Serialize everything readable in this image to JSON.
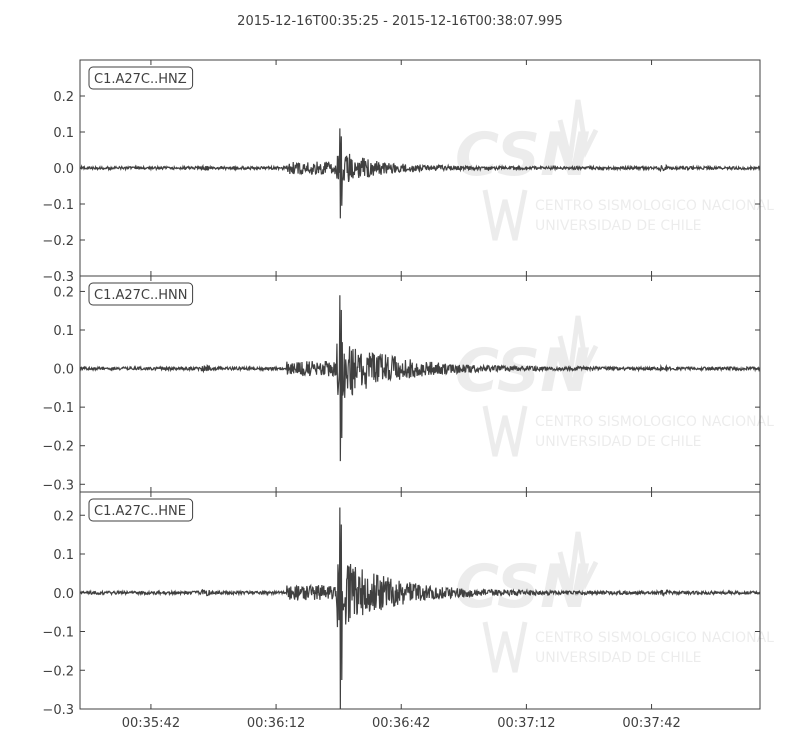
{
  "chart_data": {
    "type": "line",
    "title": "2015-12-16T00:35:25  -  2015-12-16T00:38:07.995",
    "x_tick_labels": [
      "00:35:42",
      "00:36:12",
      "00:36:42",
      "00:37:12",
      "00:37:42"
    ],
    "x_ticks_seconds": [
      17,
      47,
      77,
      107,
      137
    ],
    "x_range_seconds": [
      0,
      162.995
    ],
    "grid": false,
    "watermark_text": [
      "CSN",
      "CENTRO SISMOLOGICO NACIONAL",
      "UNIVERSIDAD DE CHILE"
    ],
    "line_color": "#404040",
    "panels": [
      {
        "label": "C1.A27C..HNZ",
        "ylim": [
          -0.3,
          0.3
        ],
        "y_ticks": [
          -0.3,
          -0.2,
          -0.1,
          0.0,
          0.1,
          0.2
        ],
        "y_tick_labels": [
          "−0.3",
          "−0.2",
          "−0.1",
          "0.0",
          "0.1",
          "0.2"
        ],
        "noise": 0.004,
        "p_arrival_s": 49.5,
        "p_amp": 0.018,
        "s_arrival_s": 61.5,
        "s_peak_max": 0.11,
        "s_peak_min": -0.14,
        "s_amp": 0.05,
        "coda_decay_s": 9
      },
      {
        "label": "C1.A27C..HNN",
        "ylim": [
          -0.32,
          0.24
        ],
        "y_ticks": [
          -0.3,
          -0.2,
          -0.1,
          0.0,
          0.1,
          0.2
        ],
        "y_tick_labels": [
          "−0.3",
          "−0.2",
          "−0.1",
          "0.0",
          "0.1",
          "0.2"
        ],
        "noise": 0.004,
        "p_arrival_s": 49.5,
        "p_amp": 0.02,
        "s_arrival_s": 61.5,
        "s_peak_max": 0.19,
        "s_peak_min": -0.24,
        "s_amp": 0.09,
        "coda_decay_s": 12
      },
      {
        "label": "C1.A27C..HNE",
        "ylim": [
          -0.3,
          0.26
        ],
        "y_ticks": [
          -0.3,
          -0.2,
          -0.1,
          0.0,
          0.1,
          0.2
        ],
        "y_tick_labels": [
          "−0.3",
          "−0.2",
          "−0.1",
          "0.0",
          "0.1",
          "0.2"
        ],
        "noise": 0.004,
        "p_arrival_s": 49.5,
        "p_amp": 0.02,
        "s_arrival_s": 61.5,
        "s_peak_max": 0.22,
        "s_peak_min": -0.3,
        "s_amp": 0.1,
        "coda_decay_s": 12
      }
    ]
  }
}
